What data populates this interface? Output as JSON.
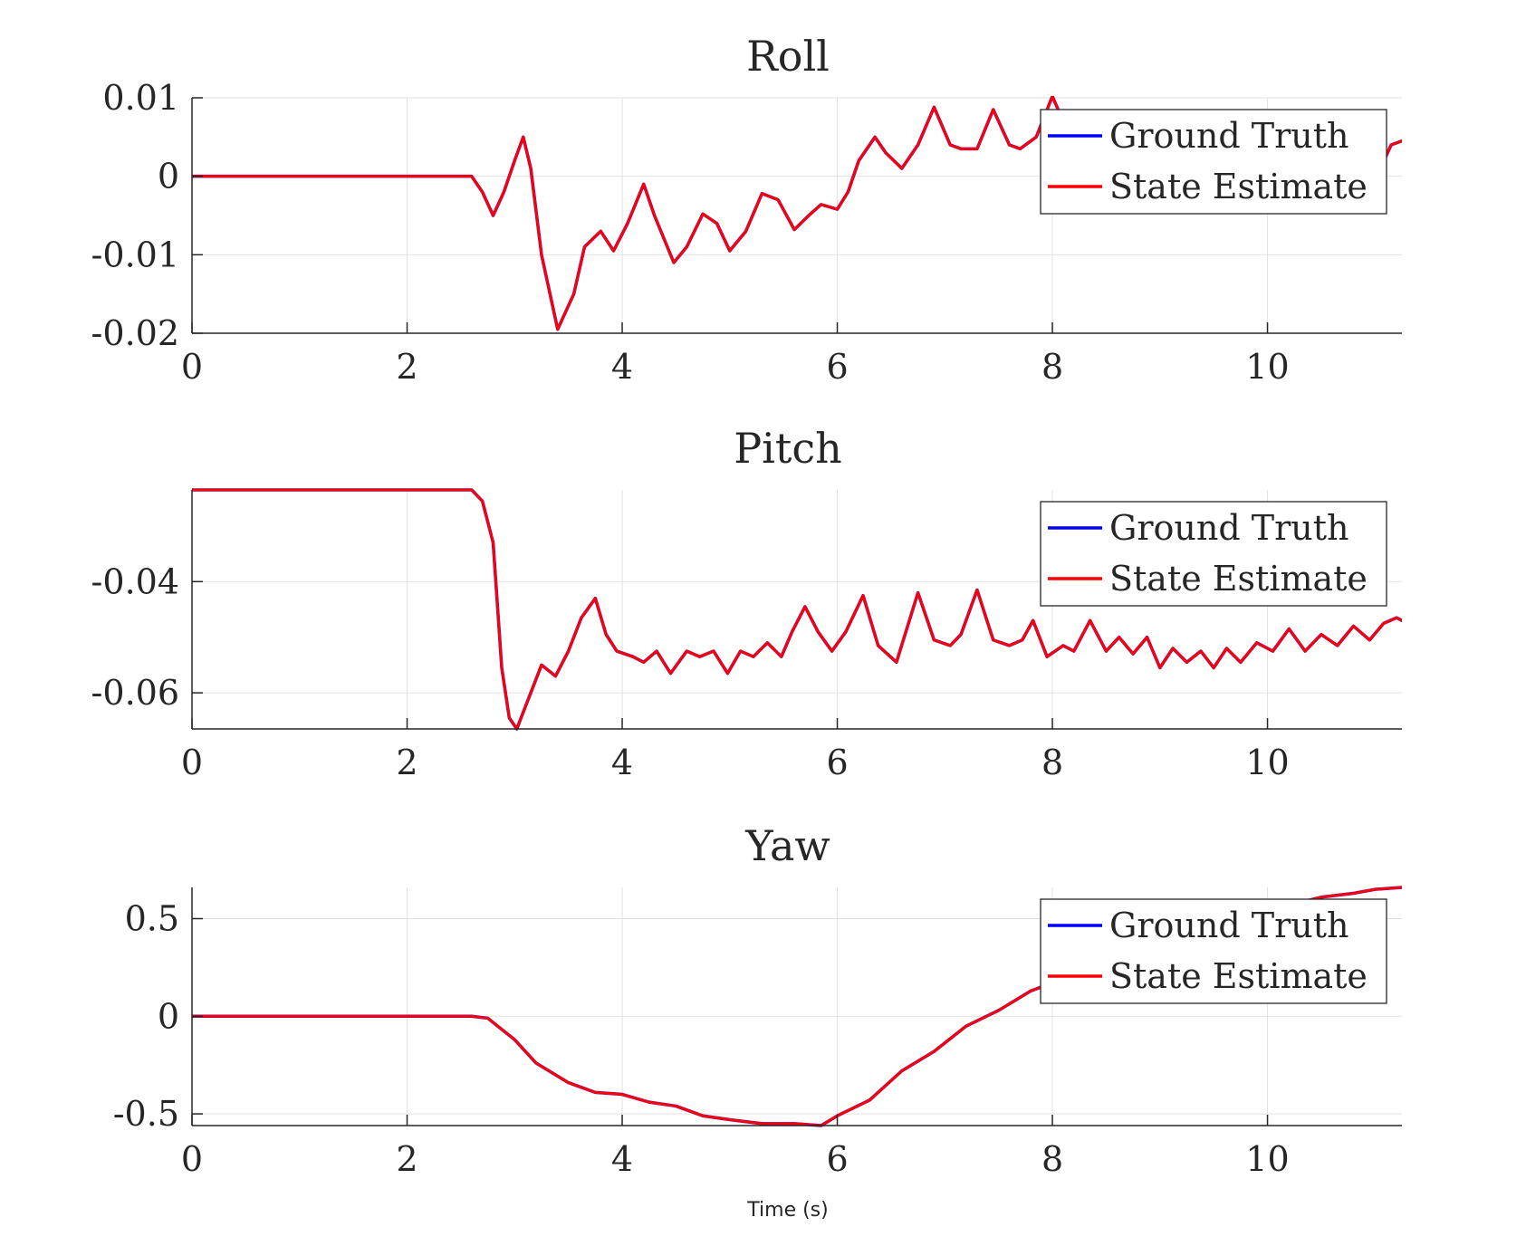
{
  "chart_data": [
    {
      "type": "line",
      "title": "Roll",
      "xlabel": "",
      "ylabel": "",
      "xlim": [
        0,
        11.25
      ],
      "ylim": [
        -0.02,
        0.01
      ],
      "xticks": [
        0,
        2,
        4,
        6,
        8,
        10
      ],
      "xtick_labels": [
        "0",
        "2",
        "4",
        "6",
        "8",
        "10"
      ],
      "yticks": [
        0.01,
        0,
        -0.01,
        -0.02
      ],
      "ytick_labels": [
        "0.01",
        "0",
        "-0.01",
        "-0.02"
      ],
      "grid": true,
      "legend_position": "top-right",
      "series": [
        {
          "name": "Ground Truth",
          "color": "#0000ff",
          "x": [
            0,
            2.6,
            2.7,
            2.8,
            2.9,
            3.0,
            3.08,
            3.15,
            3.25,
            3.4,
            3.55,
            3.65,
            3.8,
            3.92,
            4.05,
            4.2,
            4.3,
            4.48,
            4.6,
            4.75,
            4.88,
            5.0,
            5.15,
            5.3,
            5.45,
            5.6,
            5.75,
            5.85,
            6.0,
            6.1,
            6.2,
            6.35,
            6.45,
            6.6,
            6.75,
            6.9,
            7.05,
            7.15,
            7.3,
            7.45,
            7.6,
            7.7,
            7.85,
            8.0,
            8.1,
            8.3,
            8.5,
            8.7,
            8.9,
            9.1,
            9.3,
            9.5,
            9.7,
            9.9,
            10.1,
            10.3,
            10.5,
            10.7,
            10.9,
            11.05,
            11.15,
            11.25
          ],
          "y": [
            0,
            0,
            -0.002,
            -0.005,
            -0.002,
            0.002,
            0.005,
            0.001,
            -0.01,
            -0.0195,
            -0.015,
            -0.009,
            -0.007,
            -0.0095,
            -0.006,
            -0.001,
            -0.005,
            -0.011,
            -0.009,
            -0.0048,
            -0.006,
            -0.0095,
            -0.007,
            -0.0022,
            -0.003,
            -0.0068,
            -0.0048,
            -0.0036,
            -0.0042,
            -0.002,
            0.002,
            0.005,
            0.003,
            0.001,
            0.004,
            0.0088,
            0.004,
            0.0035,
            0.0035,
            0.0085,
            0.004,
            0.0035,
            0.005,
            0.0102,
            0.007,
            0.006,
            0.008,
            0.004,
            0.007,
            0.003,
            0.006,
            0.002,
            0.005,
            0.002,
            0.004,
            0.001,
            0.003,
            0.0,
            0.002,
            0.001,
            0.004,
            0.0045
          ]
        },
        {
          "name": "State Estimate",
          "color": "#ff0000",
          "x": [
            0,
            2.6,
            2.7,
            2.8,
            2.9,
            3.0,
            3.08,
            3.15,
            3.25,
            3.4,
            3.55,
            3.65,
            3.8,
            3.92,
            4.05,
            4.2,
            4.3,
            4.48,
            4.6,
            4.75,
            4.88,
            5.0,
            5.15,
            5.3,
            5.45,
            5.6,
            5.75,
            5.85,
            6.0,
            6.1,
            6.2,
            6.35,
            6.45,
            6.6,
            6.75,
            6.9,
            7.05,
            7.15,
            7.3,
            7.45,
            7.6,
            7.7,
            7.85,
            8.0,
            8.1,
            8.3,
            8.5,
            8.7,
            8.9,
            9.1,
            9.3,
            9.5,
            9.7,
            9.9,
            10.1,
            10.3,
            10.5,
            10.7,
            10.9,
            11.05,
            11.15,
            11.25
          ],
          "y": [
            0,
            0,
            -0.002,
            -0.005,
            -0.002,
            0.002,
            0.005,
            0.001,
            -0.01,
            -0.0195,
            -0.015,
            -0.009,
            -0.007,
            -0.0095,
            -0.006,
            -0.001,
            -0.005,
            -0.011,
            -0.009,
            -0.0048,
            -0.006,
            -0.0095,
            -0.007,
            -0.0022,
            -0.003,
            -0.0068,
            -0.0048,
            -0.0036,
            -0.0042,
            -0.002,
            0.002,
            0.005,
            0.003,
            0.001,
            0.004,
            0.0088,
            0.004,
            0.0035,
            0.0035,
            0.0085,
            0.004,
            0.0035,
            0.005,
            0.0102,
            0.007,
            0.006,
            0.008,
            0.004,
            0.007,
            0.003,
            0.006,
            0.002,
            0.005,
            0.002,
            0.004,
            0.001,
            0.003,
            0.0,
            0.002,
            0.001,
            0.004,
            0.0045
          ]
        }
      ]
    },
    {
      "type": "line",
      "title": "Pitch",
      "xlabel": "",
      "ylabel": "",
      "xlim": [
        0,
        11.25
      ],
      "ylim": [
        -0.0665,
        -0.0235
      ],
      "xticks": [
        0,
        2,
        4,
        6,
        8,
        10
      ],
      "xtick_labels": [
        "0",
        "2",
        "4",
        "6",
        "8",
        "10"
      ],
      "yticks": [
        -0.04,
        -0.06
      ],
      "ytick_labels": [
        "-0.04",
        "-0.06"
      ],
      "grid": true,
      "legend_position": "top-right",
      "series": [
        {
          "name": "Ground Truth",
          "color": "#0000ff",
          "x": [
            0,
            2.6,
            2.7,
            2.8,
            2.88,
            2.95,
            3.02,
            3.12,
            3.25,
            3.38,
            3.5,
            3.62,
            3.75,
            3.85,
            3.95,
            4.1,
            4.2,
            4.32,
            4.45,
            4.6,
            4.72,
            4.85,
            4.98,
            5.1,
            5.22,
            5.35,
            5.48,
            5.58,
            5.7,
            5.82,
            5.95,
            6.08,
            6.24,
            6.38,
            6.55,
            6.75,
            6.9,
            7.05,
            7.15,
            7.3,
            7.45,
            7.6,
            7.72,
            7.82,
            7.95,
            8.1,
            8.2,
            8.35,
            8.5,
            8.62,
            8.75,
            8.88,
            9.0,
            9.12,
            9.25,
            9.38,
            9.5,
            9.62,
            9.75,
            9.9,
            10.05,
            10.2,
            10.35,
            10.5,
            10.65,
            10.8,
            10.95,
            11.08,
            11.2,
            11.25
          ],
          "y": [
            -0.0235,
            -0.0235,
            -0.0255,
            -0.033,
            -0.0555,
            -0.0645,
            -0.0665,
            -0.0615,
            -0.055,
            -0.057,
            -0.0525,
            -0.0465,
            -0.043,
            -0.0495,
            -0.0525,
            -0.0535,
            -0.0545,
            -0.0525,
            -0.0565,
            -0.0525,
            -0.0535,
            -0.0525,
            -0.0565,
            -0.0525,
            -0.0535,
            -0.051,
            -0.0535,
            -0.049,
            -0.0445,
            -0.049,
            -0.0525,
            -0.049,
            -0.0425,
            -0.0515,
            -0.0545,
            -0.042,
            -0.0505,
            -0.0515,
            -0.0495,
            -0.0415,
            -0.0505,
            -0.0515,
            -0.0505,
            -0.047,
            -0.0535,
            -0.0515,
            -0.0525,
            -0.047,
            -0.0525,
            -0.05,
            -0.053,
            -0.05,
            -0.0555,
            -0.052,
            -0.0545,
            -0.0525,
            -0.0555,
            -0.052,
            -0.0545,
            -0.051,
            -0.0525,
            -0.0485,
            -0.0525,
            -0.0495,
            -0.0515,
            -0.048,
            -0.0505,
            -0.0475,
            -0.0465,
            -0.047
          ]
        },
        {
          "name": "State Estimate",
          "color": "#ff0000",
          "x": [
            0,
            2.6,
            2.7,
            2.8,
            2.88,
            2.95,
            3.02,
            3.12,
            3.25,
            3.38,
            3.5,
            3.62,
            3.75,
            3.85,
            3.95,
            4.1,
            4.2,
            4.32,
            4.45,
            4.6,
            4.72,
            4.85,
            4.98,
            5.1,
            5.22,
            5.35,
            5.48,
            5.58,
            5.7,
            5.82,
            5.95,
            6.08,
            6.24,
            6.38,
            6.55,
            6.75,
            6.9,
            7.05,
            7.15,
            7.3,
            7.45,
            7.6,
            7.72,
            7.82,
            7.95,
            8.1,
            8.2,
            8.35,
            8.5,
            8.62,
            8.75,
            8.88,
            9.0,
            9.12,
            9.25,
            9.38,
            9.5,
            9.62,
            9.75,
            9.9,
            10.05,
            10.2,
            10.35,
            10.5,
            10.65,
            10.8,
            10.95,
            11.08,
            11.2,
            11.25
          ],
          "y": [
            -0.0235,
            -0.0235,
            -0.0255,
            -0.033,
            -0.0555,
            -0.0645,
            -0.0665,
            -0.0615,
            -0.055,
            -0.057,
            -0.0525,
            -0.0465,
            -0.043,
            -0.0495,
            -0.0525,
            -0.0535,
            -0.0545,
            -0.0525,
            -0.0565,
            -0.0525,
            -0.0535,
            -0.0525,
            -0.0565,
            -0.0525,
            -0.0535,
            -0.051,
            -0.0535,
            -0.049,
            -0.0445,
            -0.049,
            -0.0525,
            -0.049,
            -0.0425,
            -0.0515,
            -0.0545,
            -0.042,
            -0.0505,
            -0.0515,
            -0.0495,
            -0.0415,
            -0.0505,
            -0.0515,
            -0.0505,
            -0.047,
            -0.0535,
            -0.0515,
            -0.0525,
            -0.047,
            -0.0525,
            -0.05,
            -0.053,
            -0.05,
            -0.0555,
            -0.052,
            -0.0545,
            -0.0525,
            -0.0555,
            -0.052,
            -0.0545,
            -0.051,
            -0.0525,
            -0.0485,
            -0.0525,
            -0.0495,
            -0.0515,
            -0.048,
            -0.0505,
            -0.0475,
            -0.0465,
            -0.047
          ]
        }
      ]
    },
    {
      "type": "line",
      "title": "Yaw",
      "xlabel": "Time (s)",
      "ylabel": "",
      "xlim": [
        0,
        11.25
      ],
      "ylim": [
        -0.56,
        0.66
      ],
      "xticks": [
        0,
        2,
        4,
        6,
        8,
        10
      ],
      "xtick_labels": [
        "0",
        "2",
        "4",
        "6",
        "8",
        "10"
      ],
      "yticks": [
        0.5,
        0,
        -0.5
      ],
      "ytick_labels": [
        "0.5",
        "0",
        "-0.5"
      ],
      "grid": true,
      "legend_position": "top-right",
      "series": [
        {
          "name": "Ground Truth",
          "color": "#0000ff",
          "x": [
            0,
            2.6,
            2.75,
            3.0,
            3.2,
            3.5,
            3.75,
            4.0,
            4.25,
            4.5,
            4.75,
            5.0,
            5.3,
            5.6,
            5.85,
            6.0,
            6.3,
            6.6,
            6.9,
            7.2,
            7.5,
            7.8,
            8.1,
            8.4,
            8.7,
            9.0,
            9.3,
            9.6,
            9.9,
            10.2,
            10.5,
            10.8,
            11.0,
            11.25
          ],
          "y": [
            0,
            0,
            -0.01,
            -0.12,
            -0.24,
            -0.34,
            -0.39,
            -0.4,
            -0.44,
            -0.46,
            -0.51,
            -0.53,
            -0.55,
            -0.55,
            -0.56,
            -0.51,
            -0.43,
            -0.28,
            -0.18,
            -0.05,
            0.03,
            0.13,
            0.19,
            0.26,
            0.33,
            0.4,
            0.44,
            0.48,
            0.52,
            0.57,
            0.61,
            0.63,
            0.65,
            0.66
          ]
        },
        {
          "name": "State Estimate",
          "color": "#ff0000",
          "x": [
            0,
            2.6,
            2.75,
            3.0,
            3.2,
            3.5,
            3.75,
            4.0,
            4.25,
            4.5,
            4.75,
            5.0,
            5.3,
            5.6,
            5.85,
            6.0,
            6.3,
            6.6,
            6.9,
            7.2,
            7.5,
            7.8,
            8.1,
            8.4,
            8.7,
            9.0,
            9.3,
            9.6,
            9.9,
            10.2,
            10.5,
            10.8,
            11.0,
            11.25
          ],
          "y": [
            0,
            0,
            -0.01,
            -0.12,
            -0.24,
            -0.34,
            -0.39,
            -0.4,
            -0.44,
            -0.46,
            -0.51,
            -0.53,
            -0.55,
            -0.55,
            -0.56,
            -0.51,
            -0.43,
            -0.28,
            -0.18,
            -0.05,
            0.03,
            0.13,
            0.19,
            0.26,
            0.33,
            0.4,
            0.44,
            0.48,
            0.52,
            0.57,
            0.61,
            0.63,
            0.65,
            0.66
          ]
        }
      ]
    }
  ]
}
